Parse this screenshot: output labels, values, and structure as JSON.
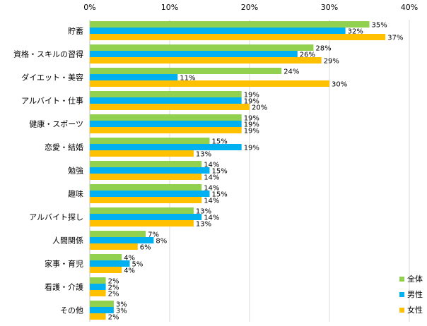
{
  "chart_data": {
    "type": "bar",
    "orientation": "horizontal",
    "title": "",
    "xlabel": "",
    "ylabel": "",
    "xlim": [
      0,
      40
    ],
    "x_ticks": [
      "0%",
      "10%",
      "20%",
      "30%",
      "40%"
    ],
    "grid": true,
    "legend_position": "bottom-right",
    "categories": [
      "貯蓄",
      "資格・スキルの習得",
      "ダイエット・美容",
      "アルバイト・仕事",
      "健康・スポーツ",
      "恋愛・結婚",
      "勉強",
      "趣味",
      "アルバイト探し",
      "人間関係",
      "家事・育児",
      "看護・介護",
      "その他"
    ],
    "series": [
      {
        "name": "全体",
        "color": "#92d050",
        "values": [
          35,
          28,
          24,
          19,
          19,
          15,
          14,
          14,
          13,
          7,
          4,
          2,
          3
        ]
      },
      {
        "name": "男性",
        "color": "#00b0f0",
        "values": [
          32,
          26,
          11,
          19,
          19,
          19,
          15,
          15,
          14,
          8,
          5,
          2,
          3
        ]
      },
      {
        "name": "女性",
        "color": "#ffc000",
        "values": [
          37,
          29,
          30,
          20,
          19,
          13,
          14,
          14,
          13,
          6,
          4,
          2,
          2
        ]
      }
    ]
  }
}
